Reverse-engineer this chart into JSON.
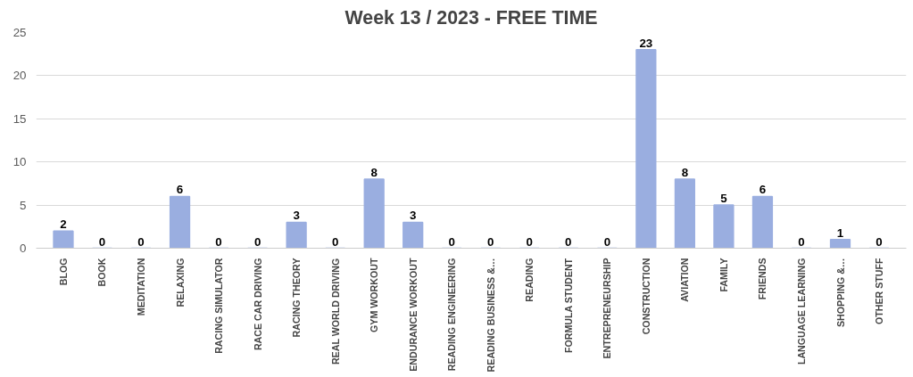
{
  "chart_data": {
    "type": "bar",
    "title": "Week 13 / 2023 - FREE TIME",
    "categories": [
      "BLOG",
      "BOOK",
      "MEDITATION",
      "RELAXING",
      "RACING SIMULATOR",
      "RACE CAR DRIVING",
      "RACING THEORY",
      "REAL WORLD DRIVING",
      "GYM WORKOUT",
      "ENDURANCE WORKOUT",
      "READING ENGINEERING",
      "READING BUSINESS &…",
      "READING",
      "FORMULA STUDENT",
      "ENTREPRENEURSHIP",
      "CONSTRUCTION",
      "AVIATION",
      "FAMILY",
      "FRIENDS",
      "LANGUAGE LEARNING",
      "SHOPPING &…",
      "OTHER STUFF"
    ],
    "values": [
      2,
      0,
      0,
      6,
      0,
      0,
      3,
      0,
      8,
      3,
      0,
      0,
      0,
      0,
      0,
      23,
      8,
      5,
      6,
      0,
      1,
      0
    ],
    "color": "#9aaee0",
    "ylim": [
      0,
      25
    ],
    "yticks": [
      0,
      5,
      10,
      15,
      20,
      25
    ],
    "grid": "y",
    "data_labels": true
  }
}
